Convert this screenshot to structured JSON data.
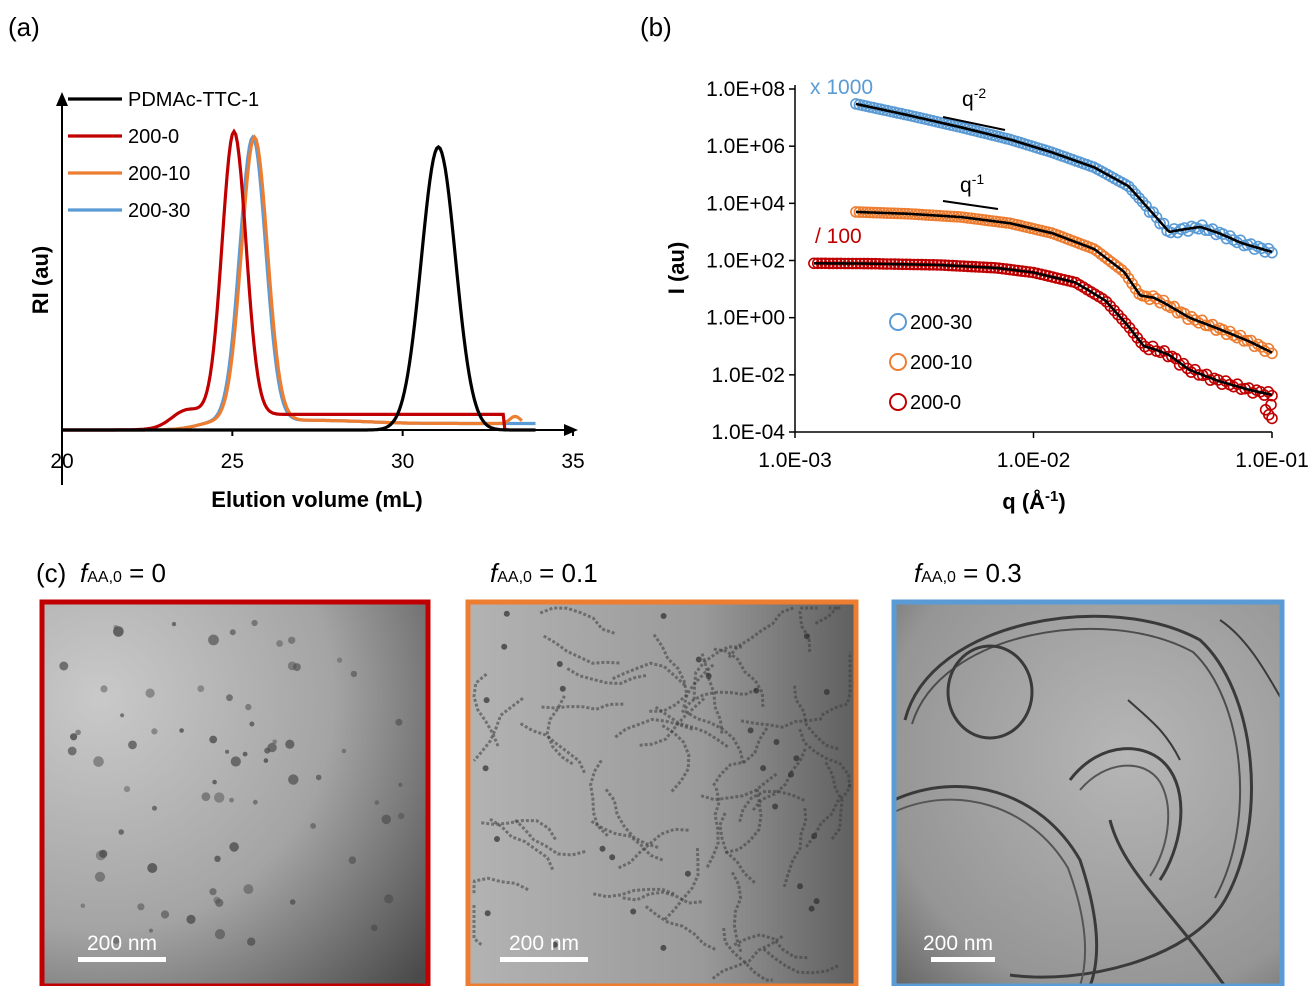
{
  "colors": {
    "black": "#000000",
    "red": "#c00000",
    "orange": "#ed7d31",
    "blue": "#5b9bd5"
  },
  "panels": {
    "a": {
      "label": "(a)"
    },
    "b": {
      "label": "(b)"
    },
    "c": {
      "label": "(c)",
      "images": [
        {
          "caption_var": "f",
          "caption_sub": "AA,0",
          "caption_value": " = 0",
          "scale_bar": "200 nm",
          "border_color": "#c00000"
        },
        {
          "caption_var": "f",
          "caption_sub": "AA,0",
          "caption_value": " = 0.1",
          "scale_bar": "200 nm",
          "border_color": "#ed7d31"
        },
        {
          "caption_var": "f",
          "caption_sub": "AA,0",
          "caption_value": " = 0.3",
          "scale_bar": "200 nm",
          "border_color": "#5b9bd5"
        }
      ]
    }
  },
  "chart_data": [
    {
      "type": "line",
      "xlabel": "Elution volume (mL)",
      "ylabel": "RI (au)",
      "xlim": [
        20,
        35
      ],
      "x_ticks": [
        20,
        25,
        30,
        35
      ],
      "y_ticks": false,
      "legend_position": "top-left",
      "series": [
        {
          "name": "PDMAc-TTC-1",
          "color": "#000000",
          "peak": 31.05,
          "sigma": 0.5,
          "height": 1.0,
          "x": [
            20.0,
            28.5,
            29.5,
            30.0,
            30.5,
            31.05,
            31.5,
            32.0,
            32.5,
            33.0,
            33.9
          ],
          "y": [
            0.0,
            0.0,
            0.02,
            0.16,
            0.6,
            1.0,
            0.68,
            0.17,
            0.03,
            0.0,
            0.0
          ]
        },
        {
          "name": "200-0",
          "color": "#c00000",
          "peak": 25.05,
          "sigma": 0.35,
          "height": 1.0,
          "baseline_end": 33.0,
          "x": [
            20.0,
            22.5,
            23.5,
            24.0,
            24.5,
            25.05,
            25.5,
            26.0,
            26.5,
            27.0,
            28.0,
            30.0,
            33.0
          ],
          "y": [
            0.0,
            0.01,
            0.06,
            0.12,
            0.52,
            1.0,
            0.65,
            0.22,
            0.1,
            0.06,
            0.04,
            0.04,
            0.04
          ]
        },
        {
          "name": "200-10",
          "color": "#ed7d31",
          "peak": 25.65,
          "sigma": 0.38,
          "height": 1.0,
          "baseline_end": 33.5,
          "x": [
            20.0,
            23.0,
            24.0,
            24.5,
            25.0,
            25.65,
            26.0,
            26.5,
            27.0,
            28.0,
            30.0,
            33.5
          ],
          "y": [
            0.0,
            0.01,
            0.05,
            0.12,
            0.47,
            1.0,
            0.8,
            0.3,
            0.12,
            0.04,
            0.03,
            0.03
          ]
        },
        {
          "name": "200-30",
          "color": "#5b9bd5",
          "peak": 25.6,
          "sigma": 0.38,
          "height": 1.0,
          "baseline_end": 33.9,
          "x": [
            20.0,
            23.0,
            24.0,
            24.5,
            25.0,
            25.6,
            26.0,
            26.5,
            27.0,
            28.0,
            30.0,
            33.9
          ],
          "y": [
            0.0,
            0.01,
            0.05,
            0.12,
            0.48,
            1.0,
            0.8,
            0.3,
            0.12,
            0.04,
            0.02,
            0.02
          ]
        }
      ]
    },
    {
      "type": "scatter",
      "xlabel": "q (Å",
      "xlabel_exp": "-1",
      "xlabel_end": ")",
      "ylabel": "I (au)",
      "x_scale": "log",
      "y_scale": "log",
      "xlim": [
        0.001,
        0.1
      ],
      "ylim": [
        0.0001,
        100000000
      ],
      "x_ticks": [
        "1.0E-03",
        "1.0E-02",
        "1.0E-01"
      ],
      "y_ticks": [
        "1.0E+08",
        "1.0E+06",
        "1.0E+04",
        "1.0E+02",
        "1.0E+00",
        "1.0E-02",
        "1.0E-04"
      ],
      "legend_position": "bottom-left",
      "annotations": [
        {
          "text": "x 1000",
          "color": "#5b9bd5"
        },
        {
          "text": "/ 100",
          "color": "#c00000"
        },
        {
          "text": "q",
          "exp": "-2"
        },
        {
          "text": "q",
          "exp": "-1"
        }
      ],
      "series": [
        {
          "name": "200-30",
          "color": "#5b9bd5",
          "q": [
            0.0018,
            0.003,
            0.005,
            0.008,
            0.012,
            0.018,
            0.025,
            0.032,
            0.037,
            0.042,
            0.05,
            0.06,
            0.075,
            0.1
          ],
          "I": [
            30000000,
            12000000,
            4500000,
            1700000,
            600000,
            180000,
            40000,
            4000,
            1000,
            1200,
            1500,
            900,
            400,
            200
          ]
        },
        {
          "name": "200-10",
          "color": "#ed7d31",
          "q": [
            0.0018,
            0.003,
            0.005,
            0.008,
            0.012,
            0.018,
            0.024,
            0.028,
            0.032,
            0.036,
            0.045,
            0.06,
            0.08,
            0.1
          ],
          "I": [
            5000,
            4300,
            3300,
            2000,
            900,
            250,
            40,
            6,
            5,
            3,
            1.0,
            0.4,
            0.15,
            0.06
          ]
        },
        {
          "name": "200-0",
          "color": "#c00000",
          "q": [
            0.0012,
            0.002,
            0.004,
            0.007,
            0.01,
            0.015,
            0.02,
            0.025,
            0.029,
            0.032,
            0.037,
            0.045,
            0.06,
            0.08,
            0.1
          ],
          "I": [
            80,
            78,
            70,
            55,
            38,
            17,
            4,
            0.5,
            0.1,
            0.08,
            0.05,
            0.015,
            0.006,
            0.003,
            0.002
          ]
        }
      ]
    }
  ]
}
